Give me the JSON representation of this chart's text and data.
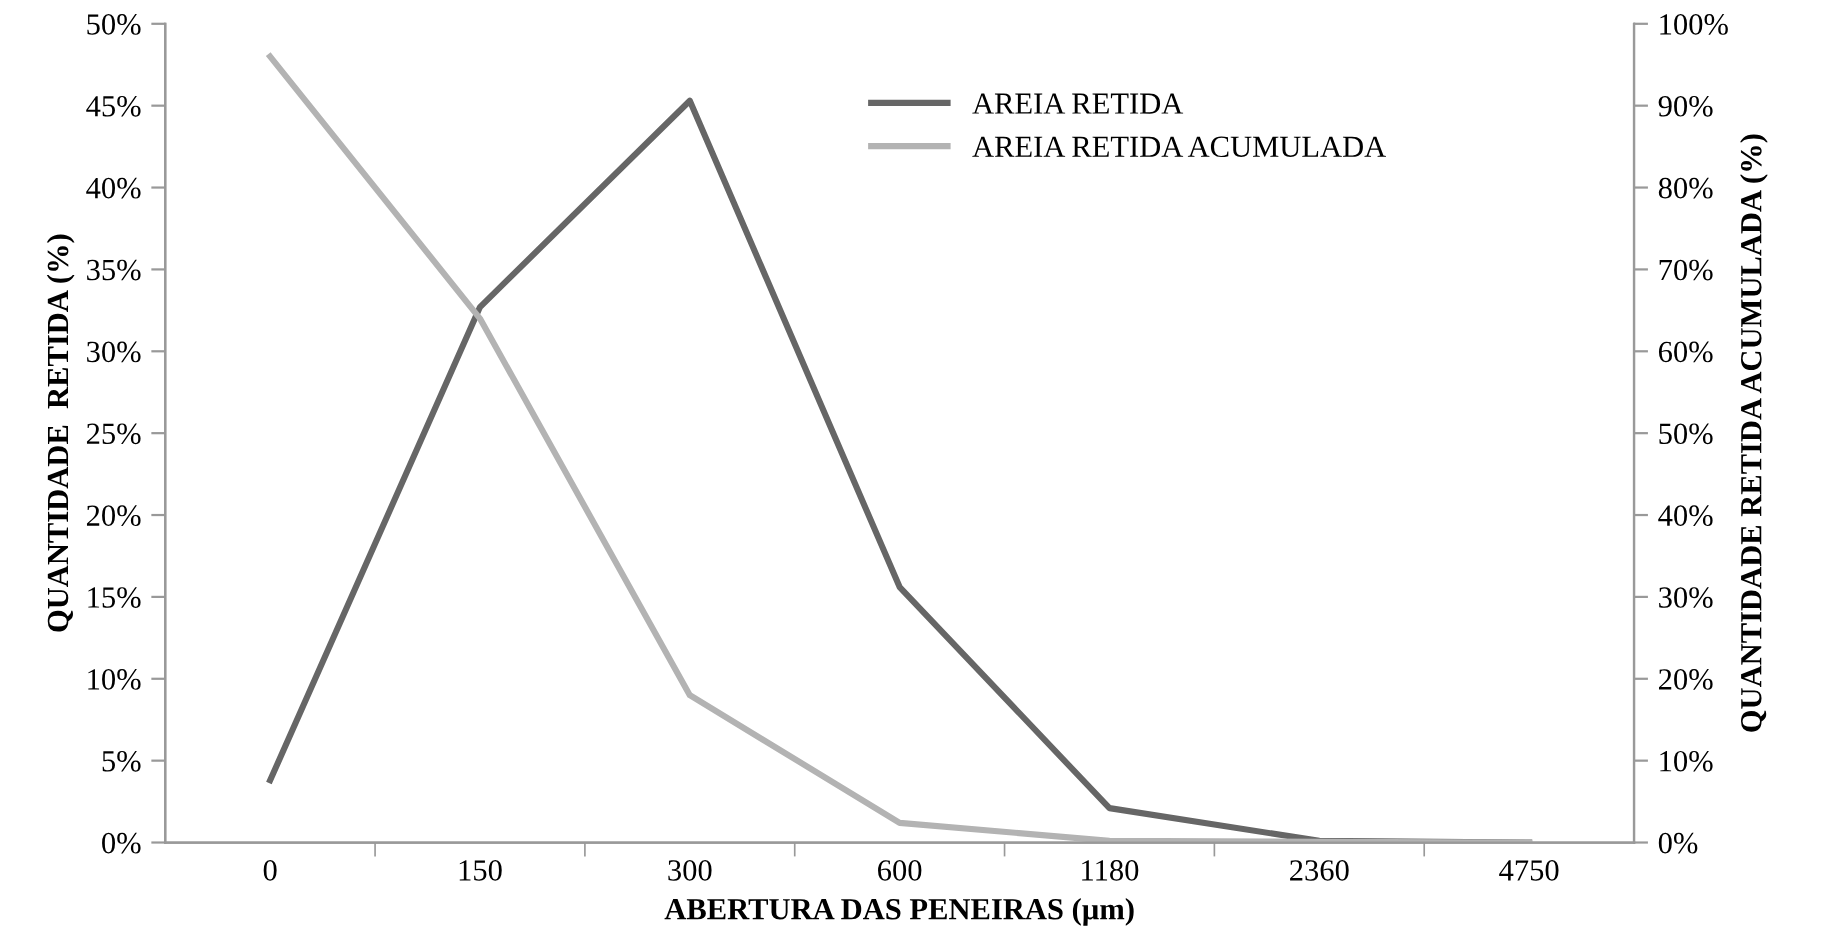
{
  "chart_data": {
    "type": "line",
    "xlabel": "ABERTURA DAS PENEIRAS (µm)",
    "ylabel": "QUANTIDADE  RETIDA (%)",
    "y2label": "QUANTIDADE RETIDA ACUMULADA (%)",
    "categories": [
      "0",
      "150",
      "300",
      "600",
      "1180",
      "2360",
      "4750"
    ],
    "series": [
      {
        "name": "AREIA RETIDA",
        "color": "#666666",
        "values": [
          3.8,
          32.7,
          45.3,
          15.6,
          2.1,
          0.1,
          0.0
        ]
      },
      {
        "name": "AREIA RETIDA ACUMULADA",
        "color": "#b3b3b3",
        "axis": "y2",
        "values": [
          96,
          64,
          18,
          2.4,
          0.2,
          0.1,
          0.0
        ]
      }
    ],
    "ylim": [
      0,
      50
    ],
    "yticks": [
      {
        "value": 0,
        "label": "0%"
      },
      {
        "value": 5,
        "label": "5%"
      },
      {
        "value": 10,
        "label": "10%"
      },
      {
        "value": 15,
        "label": "15%"
      },
      {
        "value": 20,
        "label": "20%"
      },
      {
        "value": 25,
        "label": "25%"
      },
      {
        "value": 30,
        "label": "30%"
      },
      {
        "value": 35,
        "label": "35%"
      },
      {
        "value": 40,
        "label": "40%"
      },
      {
        "value": 45,
        "label": "45%"
      },
      {
        "value": 50,
        "label": "50%"
      }
    ],
    "y2lim": [
      0,
      100
    ],
    "y2ticks": [
      {
        "value": 0,
        "label": "0%"
      },
      {
        "value": 10,
        "label": "10%"
      },
      {
        "value": 20,
        "label": "20%"
      },
      {
        "value": 30,
        "label": "30%"
      },
      {
        "value": 40,
        "label": "40%"
      },
      {
        "value": 50,
        "label": "50%"
      },
      {
        "value": 60,
        "label": "60%"
      },
      {
        "value": 70,
        "label": "70%"
      },
      {
        "value": 80,
        "label": "80%"
      },
      {
        "value": 90,
        "label": "90%"
      },
      {
        "value": 100,
        "label": "100%"
      }
    ],
    "grid": false,
    "legend": "top right",
    "marker": "none",
    "line_style": "solid"
  }
}
